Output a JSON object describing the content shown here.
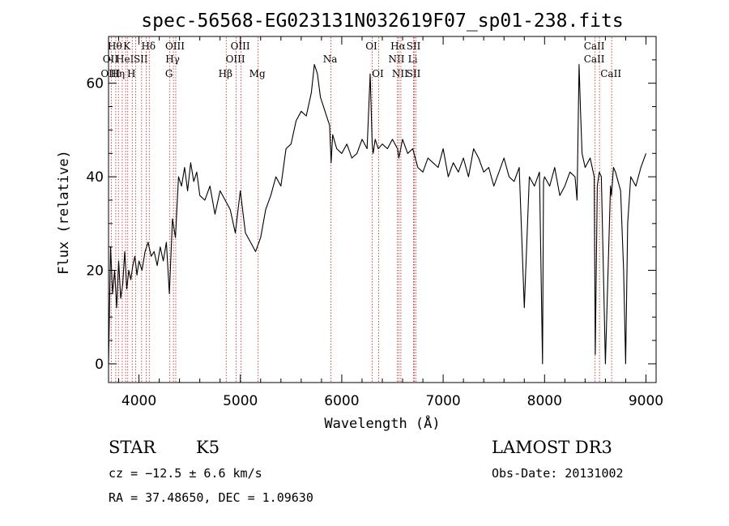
{
  "chart_data": {
    "type": "line",
    "title": "spec-56568-EG023131N032619F07_sp01-238.fits",
    "xlabel": "Wavelength (Å)",
    "ylabel": "Flux (relative)",
    "xlim": [
      3700,
      9100
    ],
    "ylim": [
      -4,
      70
    ],
    "xticks": [
      4000,
      5000,
      6000,
      7000,
      8000,
      9000
    ],
    "yticks": [
      0,
      20,
      40,
      60
    ],
    "grid": false,
    "line_color": "#000000",
    "marker_color": "#d04a4a",
    "series": [
      {
        "x": [
          3700,
          3720,
          3740,
          3760,
          3780,
          3800,
          3820,
          3840,
          3860,
          3880,
          3900,
          3920,
          3940,
          3960,
          3980,
          4000,
          4030,
          4060,
          4090,
          4120,
          4150,
          4180,
          4210,
          4240,
          4270,
          4300,
          4330,
          4360,
          4390,
          4420,
          4450,
          4480,
          4510,
          4540,
          4570,
          4600,
          4650,
          4700,
          4750,
          4800,
          4850,
          4900,
          4950,
          5000,
          5050,
          5100,
          5150,
          5200,
          5250,
          5300,
          5350,
          5400,
          5450,
          5500,
          5550,
          5600,
          5650,
          5700,
          5730,
          5760,
          5790,
          5820,
          5850,
          5880,
          5895,
          5910,
          5950,
          6000,
          6050,
          6100,
          6150,
          6200,
          6250,
          6280,
          6300,
          6310,
          6330,
          6360,
          6400,
          6450,
          6500,
          6550,
          6563,
          6600,
          6650,
          6700,
          6750,
          6800,
          6850,
          6900,
          6950,
          7000,
          7050,
          7100,
          7150,
          7200,
          7250,
          7300,
          7350,
          7400,
          7450,
          7500,
          7550,
          7600,
          7650,
          7700,
          7750,
          7800,
          7850,
          7900,
          7950,
          7980,
          7990,
          8000,
          8050,
          8100,
          8150,
          8200,
          8250,
          8300,
          8320,
          8340,
          8355,
          8370,
          8400,
          8450,
          8490,
          8500,
          8520,
          8540,
          8560,
          8600,
          8650,
          8660,
          8680,
          8700,
          8750,
          8780,
          8800,
          8820,
          8850,
          8900,
          8950,
          9000
        ],
        "y": [
          0,
          25,
          15,
          20,
          12,
          22,
          14,
          17,
          24,
          16,
          20,
          18,
          21,
          23,
          19,
          22,
          20,
          24,
          26,
          23,
          24,
          21,
          25,
          22,
          26,
          15,
          31,
          27,
          40,
          38,
          42,
          37,
          43,
          39,
          41,
          36,
          35,
          38,
          32,
          37,
          35,
          33,
          28,
          37,
          28,
          26,
          24,
          27,
          33,
          36,
          40,
          38,
          46,
          47,
          52,
          54,
          53,
          58,
          64,
          62,
          57,
          55,
          53,
          51,
          43,
          49,
          46,
          45,
          47,
          44,
          45,
          48,
          46,
          62,
          47,
          45,
          48,
          46,
          47,
          46,
          48,
          46,
          44,
          48,
          45,
          46,
          42,
          41,
          44,
          43,
          42,
          46,
          40,
          43,
          41,
          44,
          40,
          46,
          44,
          41,
          42,
          38,
          41,
          44,
          40,
          39,
          42,
          12,
          40,
          38,
          41,
          0,
          39,
          40,
          38,
          42,
          36,
          38,
          41,
          40,
          35,
          64,
          54,
          45,
          42,
          44,
          40,
          2,
          38,
          41,
          40,
          0,
          38,
          36,
          42,
          41,
          37,
          20,
          0,
          30,
          40,
          38,
          42,
          45
        ]
      }
    ],
    "line_markers": [
      {
        "wavelength": 3727,
        "labels": [
          "",
          "OII",
          "OIII"
        ]
      },
      {
        "wavelength": 3771,
        "labels": [
          "Hθ",
          "",
          ""
        ]
      },
      {
        "wavelength": 3798,
        "labels": [
          "",
          "",
          "Hη"
        ]
      },
      {
        "wavelength": 3835,
        "labels": [
          "",
          "",
          ""
        ]
      },
      {
        "wavelength": 3869,
        "labels": [
          "",
          "HeI",
          ""
        ]
      },
      {
        "wavelength": 3889,
        "labels": [
          "K",
          "",
          ""
        ]
      },
      {
        "wavelength": 3934,
        "labels": [
          "",
          "",
          "H"
        ]
      },
      {
        "wavelength": 3968,
        "labels": [
          "",
          "",
          ""
        ]
      },
      {
        "wavelength": 4026,
        "labels": [
          "",
          "SII",
          ""
        ]
      },
      {
        "wavelength": 4072,
        "labels": [
          "",
          "",
          ""
        ]
      },
      {
        "wavelength": 4102,
        "labels": [
          "Hδ",
          "",
          ""
        ]
      },
      {
        "wavelength": 4304,
        "labels": [
          "",
          "",
          "G"
        ]
      },
      {
        "wavelength": 4340,
        "labels": [
          "",
          "Hγ",
          ""
        ]
      },
      {
        "wavelength": 4363,
        "labels": [
          "OIII",
          "",
          ""
        ]
      },
      {
        "wavelength": 4861,
        "labels": [
          "",
          "",
          "Hβ"
        ]
      },
      {
        "wavelength": 4959,
        "labels": [
          "",
          "OIII",
          ""
        ]
      },
      {
        "wavelength": 5007,
        "labels": [
          "OIII",
          "",
          ""
        ]
      },
      {
        "wavelength": 5175,
        "labels": [
          "",
          "",
          "Mg"
        ]
      },
      {
        "wavelength": 5893,
        "labels": [
          "",
          "Na",
          ""
        ]
      },
      {
        "wavelength": 6300,
        "labels": [
          "OI",
          "",
          ""
        ]
      },
      {
        "wavelength": 6364,
        "labels": [
          "",
          "",
          "OI"
        ]
      },
      {
        "wavelength": 6548,
        "labels": [
          "",
          "NII",
          ""
        ]
      },
      {
        "wavelength": 6563,
        "labels": [
          "Hα",
          "",
          ""
        ]
      },
      {
        "wavelength": 6583,
        "labels": [
          "",
          "",
          "NII"
        ]
      },
      {
        "wavelength": 6708,
        "labels": [
          "",
          "Li",
          ""
        ]
      },
      {
        "wavelength": 6716,
        "labels": [
          "SII",
          "",
          "SII"
        ]
      },
      {
        "wavelength": 6731,
        "labels": [
          "",
          "",
          ""
        ]
      },
      {
        "wavelength": 8498,
        "labels": [
          "CaII",
          "CaII",
          ""
        ]
      },
      {
        "wavelength": 8542,
        "labels": [
          "",
          "",
          ""
        ]
      },
      {
        "wavelength": 8662,
        "labels": [
          "",
          "",
          "CaII"
        ]
      }
    ]
  },
  "info": {
    "object_class": "STAR",
    "subclass": "K5",
    "survey": "LAMOST DR3",
    "cz": "cz = −12.5 ± 6.6 km/s",
    "obs_date": "Obs-Date: 20131002",
    "coords": "RA =  37.48650, DEC =   1.09630"
  }
}
